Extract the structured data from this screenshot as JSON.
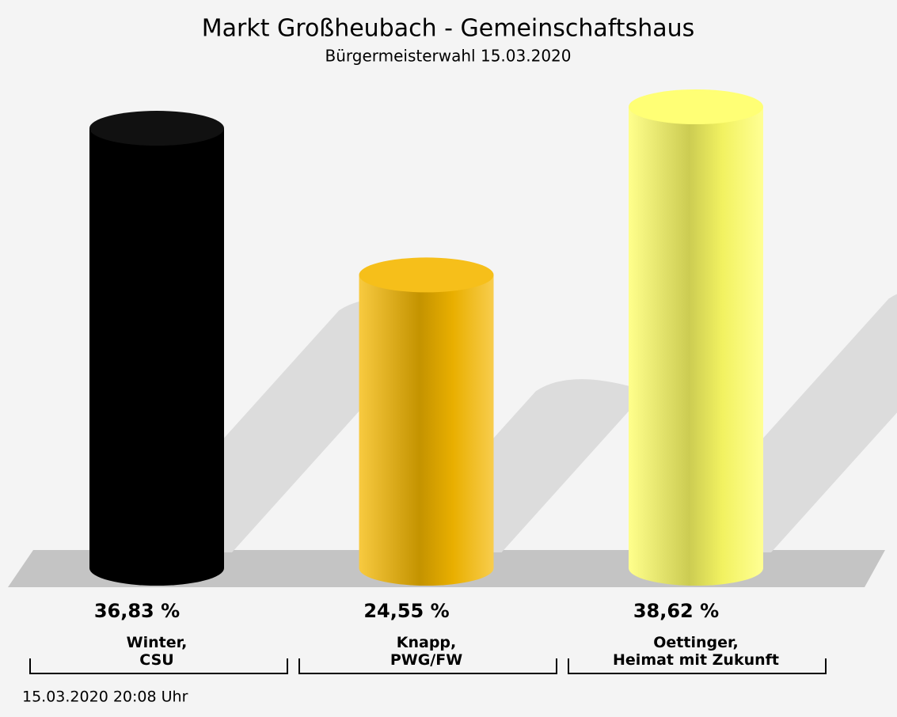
{
  "chart_data": {
    "type": "bar",
    "title": "Markt Großheubach - Gemeinschaftshaus",
    "subtitle": "Bürgermeisterwahl 15.03.2020",
    "categories": [
      "Winter,\nCSU",
      "Knapp,\nPWG/FW",
      "Oettinger,\nHeimat mit Zukunft"
    ],
    "values": [
      36.83,
      24.55,
      38.62
    ],
    "value_labels": [
      "36,83 %",
      "24,55 %",
      "38,62 %"
    ],
    "colors": [
      "#000000",
      "#f5b800",
      "#ffff66"
    ],
    "footnote": "15.03.2020 20:08 Uhr"
  }
}
